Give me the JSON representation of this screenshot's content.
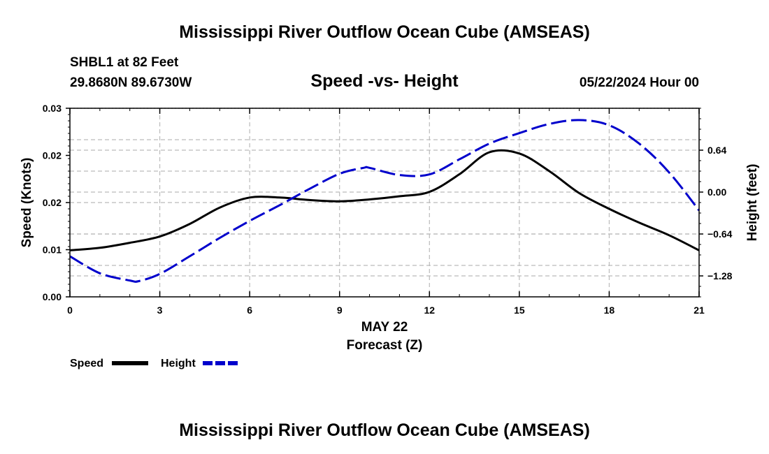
{
  "chart_data": {
    "type": "line",
    "title": "Mississippi River Outflow Ocean Cube (AMSEAS)",
    "footer_title": "Mississippi River Outflow Ocean Cube (AMSEAS)",
    "station": "SHBL1 at 82 Feet",
    "location": "29.8680N  89.6730W",
    "subtitle": "Speed -vs- Height",
    "datetime": "05/22/2024 Hour 00",
    "xlabel_date": "MAY 22",
    "xlabel": "Forecast (Z)",
    "ylabel": "Speed (Knots)",
    "y2label": "Height (feet)",
    "x_ticks": [
      0,
      3,
      6,
      9,
      12,
      15,
      18,
      21
    ],
    "x_tick_labels": [
      "0",
      "3",
      "6",
      "9",
      "12",
      "15",
      "18",
      "21"
    ],
    "xlim": [
      0,
      21
    ],
    "ylim": [
      0,
      0.03
    ],
    "y_ticks": [
      0,
      0.005,
      0.01,
      0.015,
      0.02,
      0.025,
      0.03
    ],
    "y_tick_labels": [
      "0.00",
      "0.01",
      "0.02",
      "0.02",
      "0.03"
    ],
    "y_tick_label_values": [
      0,
      0.0075,
      0.015,
      0.0225,
      0.03
    ],
    "y2lim": [
      -1.6,
      1.28
    ],
    "y2_ticks": [
      -1.28,
      -0.64,
      0.0,
      0.64
    ],
    "y2_tick_labels": [
      "−1.28",
      "−0.64",
      "0.00",
      "0.64"
    ],
    "grid": true,
    "legend": [
      {
        "name": "Speed",
        "color": "#000000",
        "dash": "solid"
      },
      {
        "name": "Height",
        "color": "#0000cc",
        "dash": "dashed"
      }
    ],
    "series": [
      {
        "name": "Speed",
        "axis": "left",
        "color": "#000000",
        "x": [
          0,
          1,
          2,
          3,
          4,
          5,
          6,
          7,
          8,
          9,
          10,
          11,
          12,
          13,
          14,
          15,
          16,
          17,
          18,
          19,
          20,
          21
        ],
        "values": [
          0.0074,
          0.0078,
          0.0086,
          0.0096,
          0.0116,
          0.0142,
          0.0158,
          0.0158,
          0.0154,
          0.0152,
          0.0155,
          0.016,
          0.0167,
          0.0195,
          0.023,
          0.0228,
          0.02,
          0.0165,
          0.014,
          0.0118,
          0.0098,
          0.0074
        ]
      },
      {
        "name": "Height",
        "axis": "right",
        "color": "#0000cc",
        "x": [
          0,
          1,
          2,
          2.3,
          3,
          4,
          5,
          6,
          7,
          8,
          9,
          9.8,
          10,
          11,
          12,
          13,
          14,
          15,
          16,
          17,
          18,
          19,
          20,
          21
        ],
        "values": [
          -0.98,
          -1.24,
          -1.35,
          -1.36,
          -1.25,
          -0.98,
          -0.7,
          -0.44,
          -0.2,
          0.05,
          0.28,
          0.37,
          0.37,
          0.26,
          0.27,
          0.5,
          0.74,
          0.9,
          1.04,
          1.1,
          1.02,
          0.74,
          0.3,
          -0.28
        ]
      }
    ]
  }
}
